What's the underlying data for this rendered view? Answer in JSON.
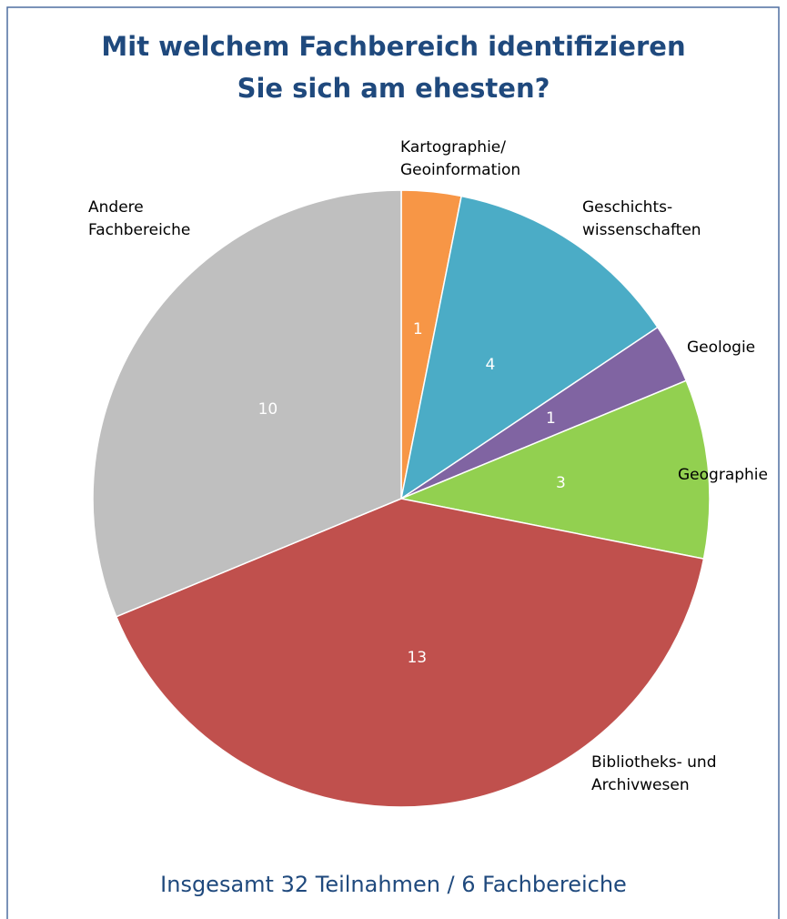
{
  "chart_data": {
    "type": "pie",
    "title": "Mit welchem Fachbereich identifizieren\nSie sich am ehesten?",
    "subtitle": "Insgesamt 32 Teilnahmen / 6 Fachbereiche",
    "categories": [
      "Kartographie/\nGeoinformation",
      "Geschichts-\nwissenschaften",
      "Geologie",
      "Geographie",
      "Bibliotheks- und\nArchivwesen",
      "Andere\nFachbereiche"
    ],
    "values": [
      1,
      4,
      1,
      3,
      13,
      10
    ],
    "colors": [
      "#f79646",
      "#4bacc6",
      "#8064a2",
      "#92d050",
      "#c0504d",
      "#bfbfbf"
    ]
  }
}
